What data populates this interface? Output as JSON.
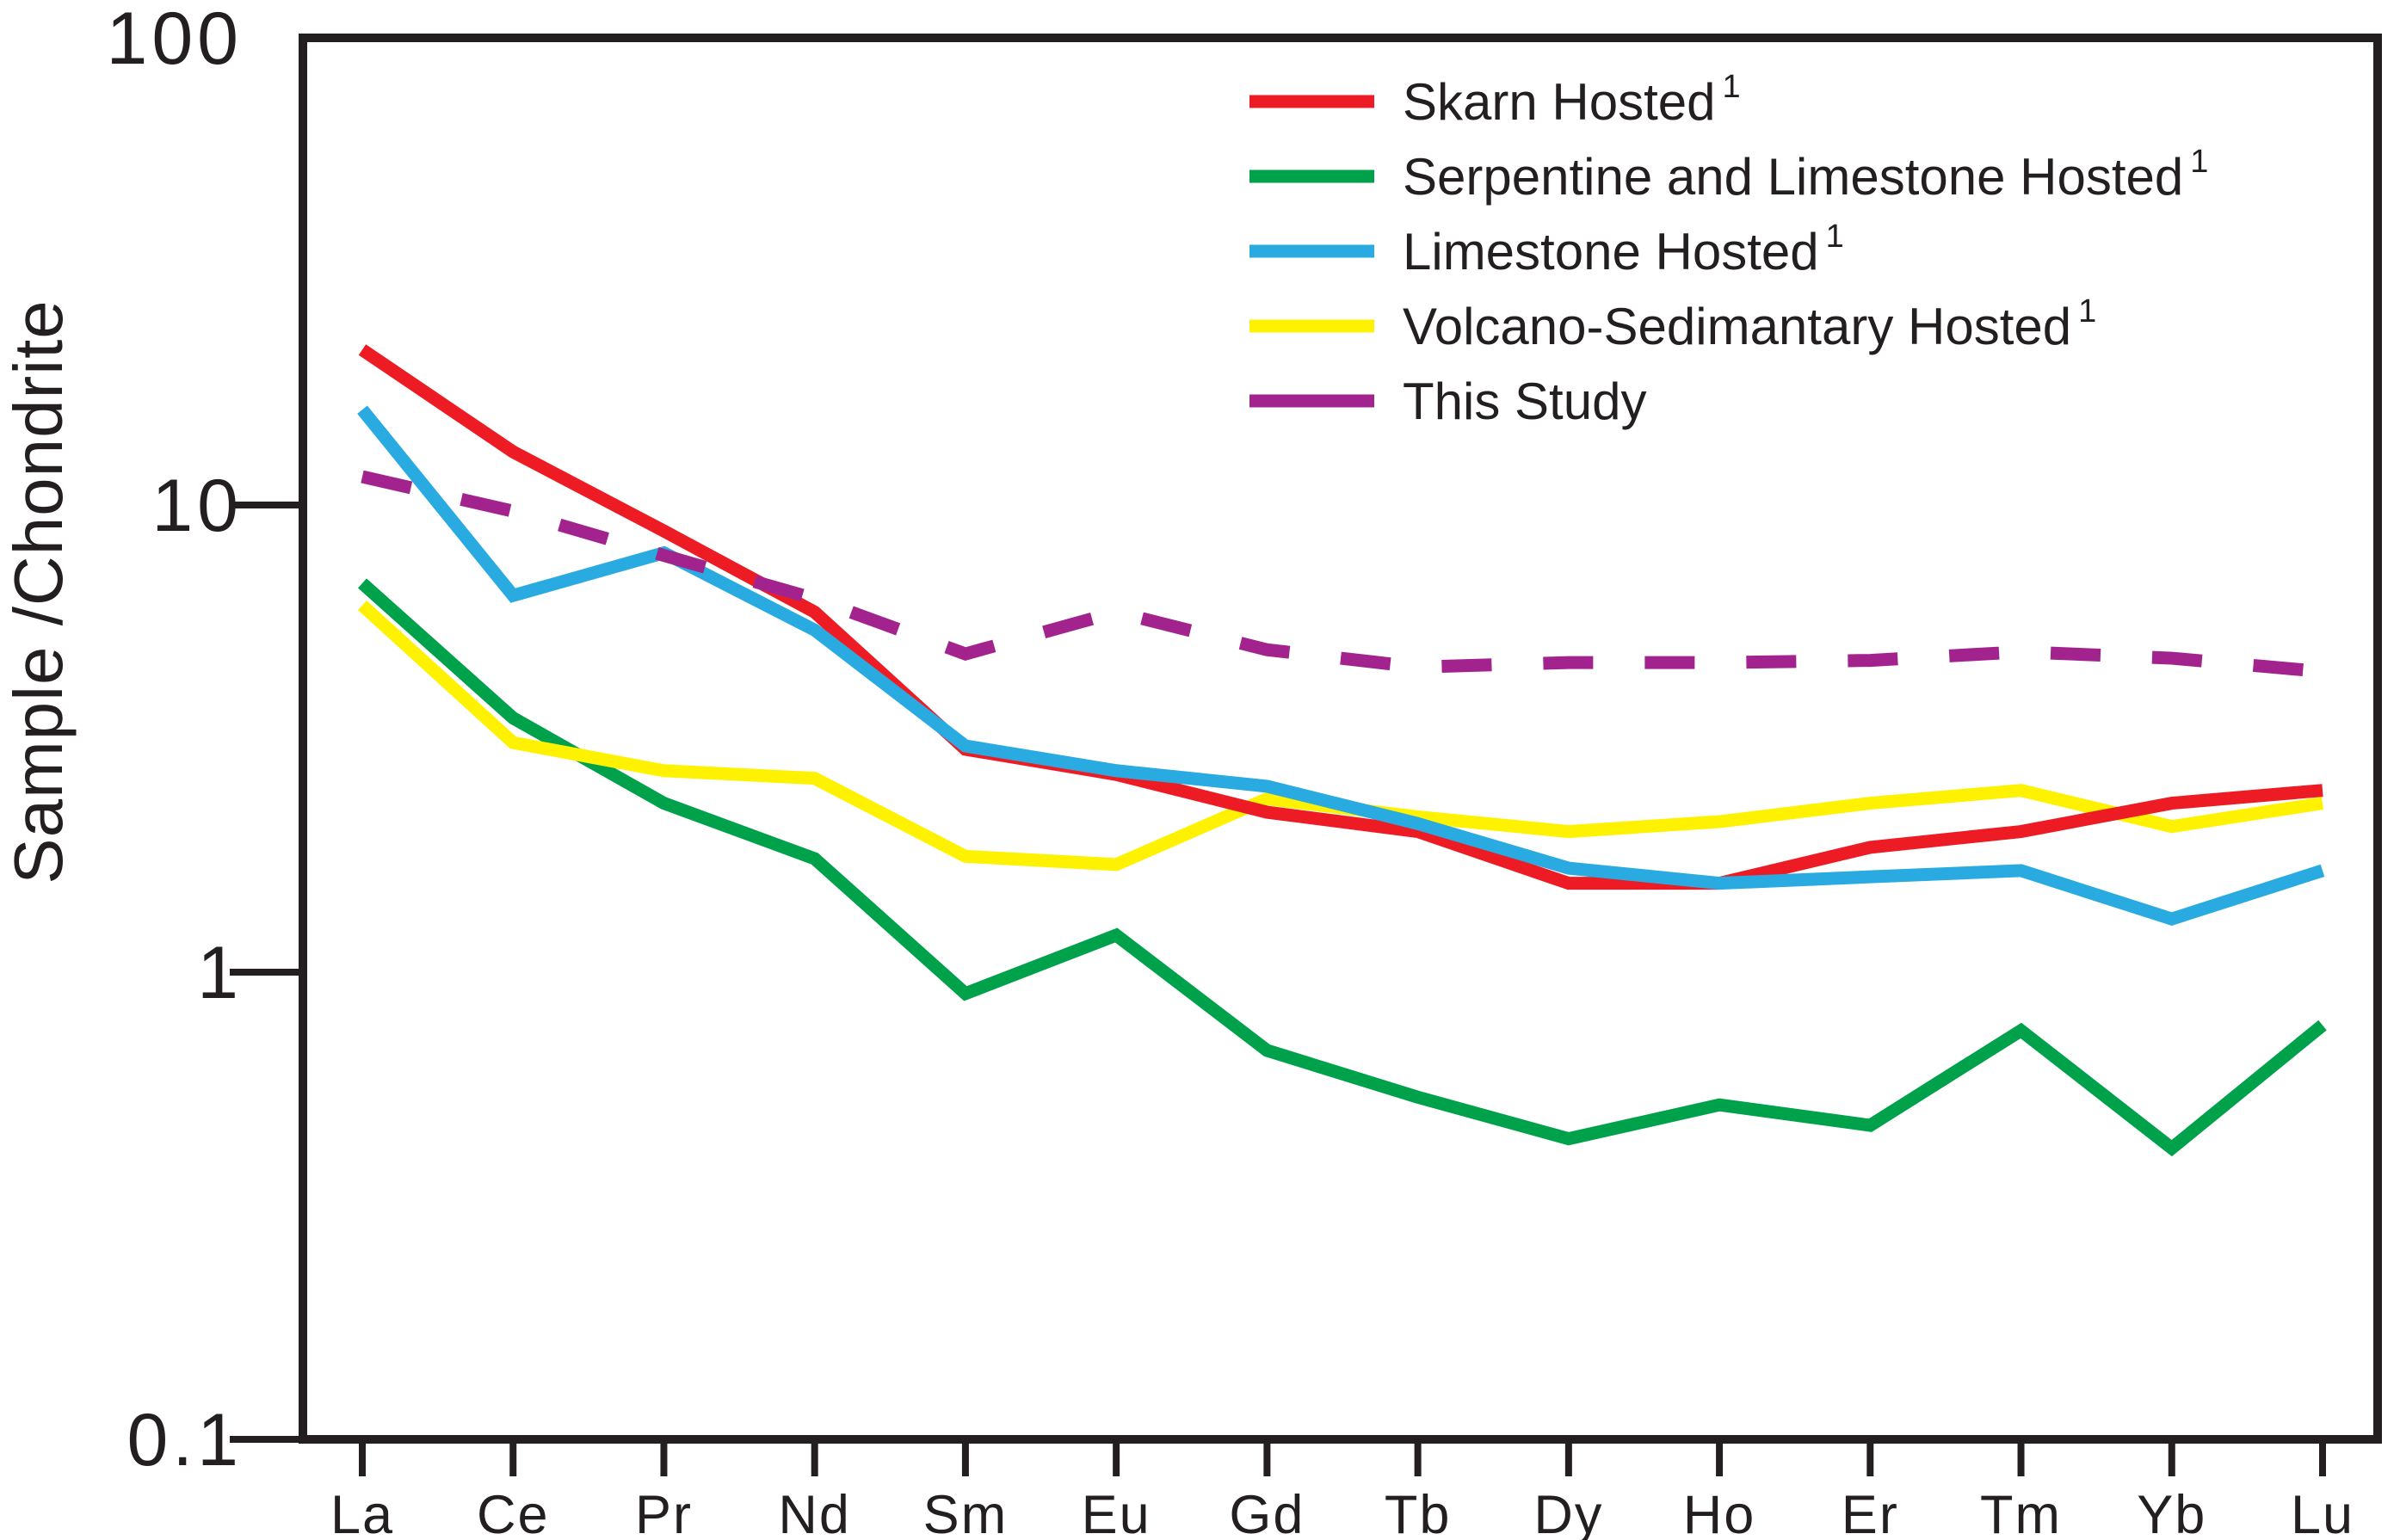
{
  "chart_data": {
    "type": "line",
    "title": "",
    "xlabel": "",
    "ylabel": "Sample /Chondrite",
    "grid": false,
    "legend_position": "top-right",
    "axis_color": "#231F20",
    "x_categories": [
      "La",
      "Ce",
      "Pr",
      "Nd",
      "Sm",
      "Eu",
      "Gd",
      "Tb",
      "Dy",
      "Ho",
      "Er",
      "Tm",
      "Yb",
      "Lu"
    ],
    "y_axis": {
      "scale": "log",
      "min": 0.1,
      "max": 100,
      "ticks": [
        100,
        10,
        1,
        0.1
      ],
      "tick_labels": [
        "100",
        "10",
        "1",
        "0.1"
      ]
    },
    "series": [
      {
        "name": "Skarn Hosted",
        "superscript": "1",
        "color": "#ED1C24",
        "dash": false,
        "values": [
          21.5,
          13.0,
          8.8,
          5.9,
          3.0,
          2.65,
          2.2,
          2.0,
          1.55,
          1.55,
          1.85,
          2.0,
          2.3,
          2.45
        ]
      },
      {
        "name": "Serpentine and Limestone Hosted",
        "superscript": "1",
        "color": "#00A14B",
        "dash": false,
        "values": [
          6.8,
          3.5,
          2.3,
          1.75,
          0.9,
          1.2,
          0.68,
          0.54,
          0.44,
          0.52,
          0.47,
          0.75,
          0.42,
          0.77
        ]
      },
      {
        "name": "Limestone Hosted",
        "superscript": "1",
        "color": "#29ABE2",
        "dash": false,
        "values": [
          16.0,
          6.4,
          7.9,
          5.4,
          3.05,
          2.7,
          2.5,
          2.08,
          1.67,
          1.55,
          1.6,
          1.65,
          1.3,
          1.65
        ]
      },
      {
        "name": "Volcano-Sedimantary Hosted",
        "superscript": "1",
        "color": "#FFF200",
        "dash": false,
        "values": [
          6.1,
          3.1,
          2.7,
          2.6,
          1.77,
          1.7,
          2.35,
          2.15,
          2.0,
          2.1,
          2.3,
          2.45,
          2.05,
          2.3
        ]
      },
      {
        "name": "This Study",
        "superscript": "",
        "color": "#A3238E",
        "dash": true,
        "values": [
          11.5,
          9.7,
          7.8,
          6.3,
          4.8,
          5.9,
          4.9,
          4.5,
          4.6,
          4.6,
          4.65,
          4.85,
          4.7,
          4.4
        ]
      }
    ]
  }
}
